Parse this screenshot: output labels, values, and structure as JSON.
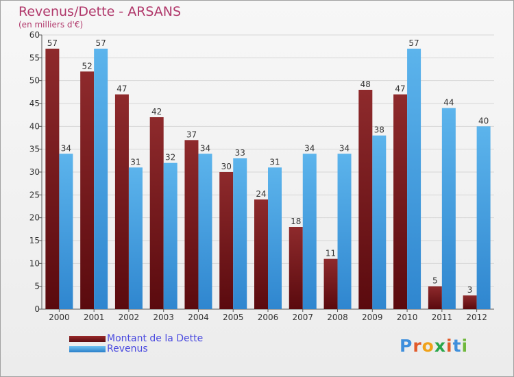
{
  "title": "Revenus/Dette - ARSANS",
  "subtitle": "(en milliers d'€)",
  "chart_data": {
    "type": "bar",
    "categories": [
      "2000",
      "2001",
      "2002",
      "2003",
      "2004",
      "2005",
      "2006",
      "2007",
      "2008",
      "2009",
      "2010",
      "2011",
      "2012"
    ],
    "series": [
      {
        "name": "Montant de la Dette",
        "color": "#7a1518",
        "values": [
          57,
          52,
          47,
          42,
          37,
          30,
          24,
          18,
          11,
          48,
          47,
          5,
          3
        ]
      },
      {
        "name": "Revenus",
        "color": "#3f9ddf",
        "values": [
          34,
          57,
          31,
          32,
          34,
          33,
          31,
          34,
          34,
          38,
          57,
          44,
          40
        ]
      }
    ],
    "ylim": [
      0,
      60
    ],
    "yticks": [
      0,
      5,
      10,
      15,
      20,
      25,
      30,
      35,
      40,
      45,
      50,
      55,
      60
    ],
    "grid": true,
    "legend_position": "bottom-left"
  },
  "legend": {
    "items": [
      {
        "label": "Montant de la Dette",
        "color": "#7a1518"
      },
      {
        "label": "Revenus",
        "color": "#3f9ddf"
      }
    ]
  },
  "brand": {
    "letters": [
      "P",
      "r",
      "o",
      "x",
      "i",
      "t",
      "i"
    ],
    "colors": [
      "#3f8fdc",
      "#e25a2a",
      "#f0a21a",
      "#2aa64a",
      "#e25a2a",
      "#3f8fdc",
      "#6fb83c"
    ]
  }
}
